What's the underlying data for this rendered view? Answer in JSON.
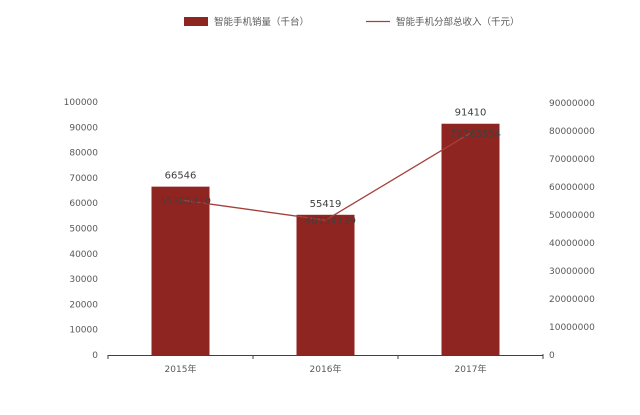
{
  "chart_data": {
    "type": "bar",
    "categories": [
      "2015年",
      "2016年",
      "2017年"
    ],
    "series": [
      {
        "name": "智能手机销量（千台）",
        "type": "bar",
        "axis": "left",
        "color": "#8f2520",
        "values": [
          66546,
          55419,
          91410
        ],
        "labels": [
          "66546",
          "55419",
          "91410"
        ]
      },
      {
        "name": "智能手机分部总收入（千元）",
        "type": "line",
        "axis": "right",
        "color": "#a4403b",
        "values": [
          55385410,
          48154139,
          79263594
        ],
        "labels": [
          "55385410",
          "48154139",
          "79263594"
        ]
      }
    ],
    "y_left": {
      "min": 0,
      "max": 100000,
      "ticks": [
        "0",
        "10000",
        "20000",
        "30000",
        "40000",
        "50000",
        "60000",
        "70000",
        "80000",
        "90000",
        "100000"
      ]
    },
    "y_right": {
      "min": 0,
      "max": 90000000,
      "ticks": [
        "0",
        "10000000",
        "20000000",
        "30000000",
        "40000000",
        "50000000",
        "60000000",
        "70000000",
        "80000000",
        "90000000"
      ]
    },
    "legend_position": "top",
    "grid": false
  }
}
